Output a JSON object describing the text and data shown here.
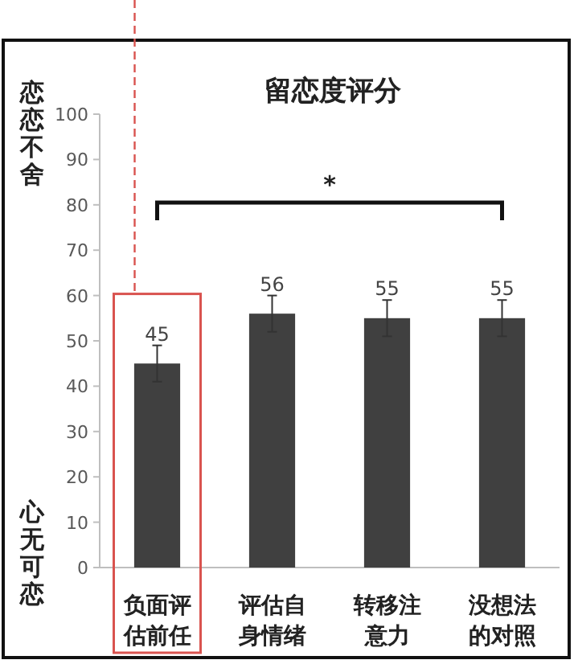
{
  "chart_data": {
    "type": "bar",
    "title": "留恋度评分",
    "categories": [
      "负面评估前任",
      "评估自身情绪",
      "转移注意力",
      "没想法的对照"
    ],
    "values": [
      45,
      56,
      55,
      55
    ],
    "errors": [
      4,
      4,
      4,
      4
    ],
    "color": "#404040",
    "ylim": [
      0,
      100
    ],
    "yticks": [
      0,
      10,
      20,
      30,
      40,
      50,
      60,
      70,
      80,
      90,
      100
    ],
    "data_labels": true,
    "grid": false,
    "annotations": [
      "恋恋不舍",
      "心无可恋",
      "*"
    ]
  }
}
